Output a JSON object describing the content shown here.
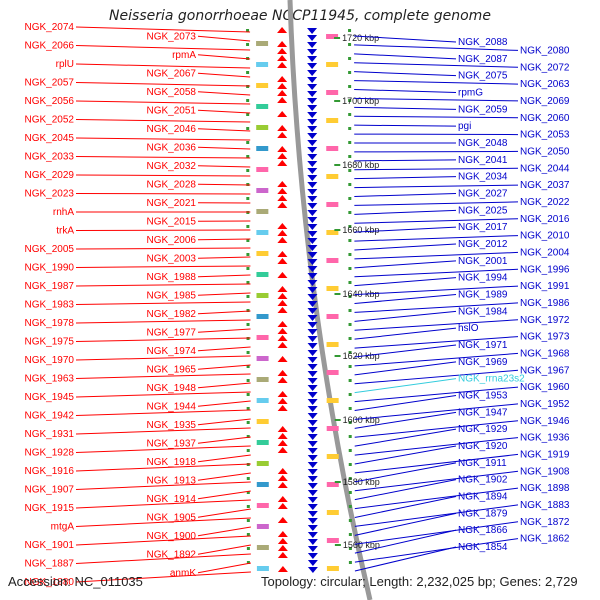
{
  "title": "Neisseria gonorrhoeae NCCP11945, complete genome",
  "footer": {
    "accession": "Accession: NC_011035",
    "summary": "Topology: circular; Length: 2,232,025 bp; Genes: 2,729"
  },
  "colors": {
    "left_strand": "#ff0000",
    "right_strand": "#0000cc",
    "rrna": "#33ccdd",
    "backbone": "#999999",
    "tick": "#339933"
  },
  "kbp_ticks": [
    "1720 kbp",
    "1700 kbp",
    "1680 kbp",
    "1660 kbp",
    "1640 kbp",
    "1620 kbp",
    "1600 kbp",
    "1580 kbp",
    "1560 kbp"
  ],
  "left_labels": [
    "NGK_2074",
    "NGK_2073",
    "NGK_2066",
    "rpmA",
    "rplU",
    "NGK_2067",
    "NGK_2057",
    "NGK_2058",
    "NGK_2056",
    "NGK_2051",
    "NGK_2052",
    "NGK_2046",
    "NGK_2045",
    "NGK_2036",
    "NGK_2033",
    "NGK_2032",
    "NGK_2029",
    "NGK_2028",
    "NGK_2023",
    "NGK_2021",
    "rnhA",
    "NGK_2015",
    "trkA",
    "NGK_2006",
    "NGK_2005",
    "NGK_2003",
    "NGK_1990",
    "NGK_1988",
    "NGK_1987",
    "NGK_1985",
    "NGK_1983",
    "NGK_1982",
    "NGK_1978",
    "NGK_1977",
    "NGK_1975",
    "NGK_1974",
    "NGK_1970",
    "NGK_1965",
    "NGK_1963",
    "NGK_1948",
    "NGK_1945",
    "NGK_1944",
    "NGK_1942",
    "NGK_1935",
    "NGK_1931",
    "NGK_1937",
    "NGK_1928",
    "NGK_1918",
    "NGK_1916",
    "NGK_1913",
    "NGK_1907",
    "NGK_1914",
    "NGK_1915",
    "NGK_1905",
    "mtgA",
    "NGK_1900",
    "NGK_1901",
    "NGK_1892",
    "NGK_1887",
    "anmK",
    "NGK_1880"
  ],
  "right_labels": [
    "NGK_2088",
    "NGK_2080",
    "NGK_2087",
    "NGK_2072",
    "NGK_2075",
    "NGK_2063",
    "rpmG",
    "NGK_2069",
    "NGK_2059",
    "NGK_2060",
    "pgi",
    "NGK_2053",
    "NGK_2048",
    "NGK_2050",
    "NGK_2041",
    "NGK_2044",
    "NGK_2034",
    "NGK_2037",
    "NGK_2027",
    "NGK_2022",
    "NGK_2025",
    "NGK_2016",
    "NGK_2017",
    "NGK_2010",
    "NGK_2012",
    "NGK_2004",
    "NGK_2001",
    "NGK_1996",
    "NGK_1994",
    "NGK_1991",
    "NGK_1989",
    "NGK_1986",
    "NGK_1984",
    "NGK_1972",
    "hslO",
    "NGK_1973",
    "NGK_1971",
    "NGK_1968",
    "NGK_1969",
    "NGK_1967",
    "NGK_rrna23s2",
    "NGK_1960",
    "NGK_1953",
    "NGK_1952",
    "NGK_1947",
    "NGK_1946",
    "NGK_1929",
    "NGK_1936",
    "NGK_1920",
    "NGK_1919",
    "NGK_1911",
    "NGK_1908",
    "NGK_1902",
    "NGK_1898",
    "NGK_1894",
    "NGK_1883",
    "NGK_1879",
    "NGK_1872",
    "NGK_1866",
    "NGK_1862",
    "NGK_1854"
  ]
}
